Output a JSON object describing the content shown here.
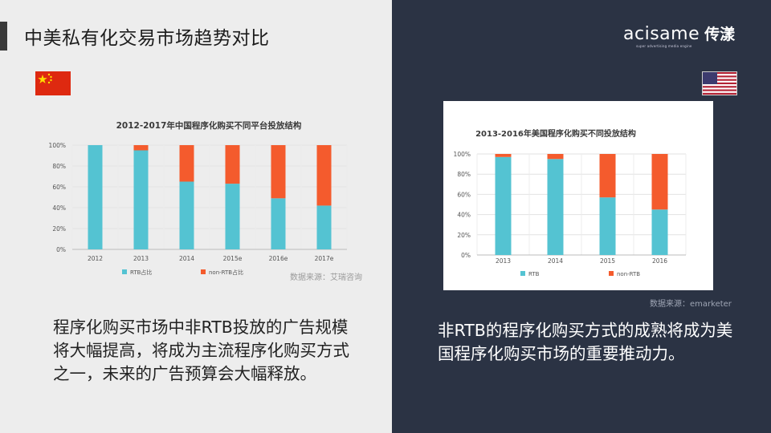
{
  "header": {
    "title": "中美私有化交易市场趋势对比",
    "logo_text": "acisame",
    "logo_cn": "传漾",
    "logo_tagline": "super advertising media engine"
  },
  "china": {
    "flag_icon": "china-flag-icon",
    "source": "数据来源：艾瑞咨询",
    "body_text": "程序化购买市场中非RTB投放的广告规模将大幅提高，将成为主流程序化购买方式之一，未来的广告预算会大幅释放。"
  },
  "usa": {
    "flag_icon": "usa-flag-icon",
    "source": "数据来源：emarketer",
    "body_text": "非RTB的程序化购买方式的成熟将成为美国程序化购买市场的重要推动力。"
  },
  "colors": {
    "rtb": "#54c3d2",
    "non_rtb": "#f45b2d",
    "dark_panel": "#2b3344",
    "light_panel": "#ededed"
  },
  "chart_data": [
    {
      "type": "bar",
      "stacked": true,
      "title": "2012-2017年中国程序化购买不同平台投放结构",
      "categories": [
        "2012",
        "2013",
        "2014",
        "2015e",
        "2016e",
        "2017e"
      ],
      "series": [
        {
          "name": "RTB占比",
          "values": [
            100,
            95,
            65,
            63,
            49,
            42
          ]
        },
        {
          "name": "non-RTB占比",
          "values": [
            0,
            5,
            35,
            37,
            51,
            58
          ]
        }
      ],
      "yticks": [
        "0%",
        "20%",
        "40%",
        "60%",
        "80%",
        "100%"
      ],
      "ylim": [
        0,
        100
      ],
      "grid": true,
      "legend": "bottom"
    },
    {
      "type": "bar",
      "stacked": true,
      "title": "2013-2016年美国程序化购买不同投放结构",
      "categories": [
        "2013",
        "2014",
        "2015",
        "2016"
      ],
      "series": [
        {
          "name": "RTB",
          "values": [
            97,
            95,
            57,
            45
          ]
        },
        {
          "name": "non-RTB",
          "values": [
            3,
            5,
            43,
            55
          ]
        }
      ],
      "yticks": [
        "0%",
        "20%",
        "40%",
        "60%",
        "80%",
        "100%"
      ],
      "ylim": [
        0,
        100
      ],
      "grid": true,
      "legend": "bottom"
    }
  ]
}
